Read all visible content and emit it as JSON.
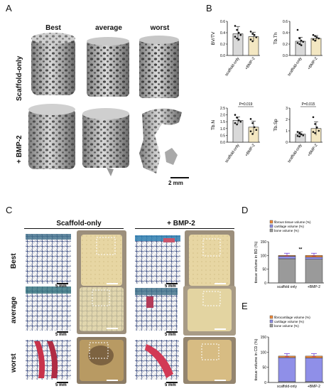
{
  "panel_labels": {
    "a": "A",
    "b": "B",
    "c": "C",
    "d": "D",
    "e": "E"
  },
  "panelA": {
    "col_headers": [
      "Best",
      "average",
      "worst"
    ],
    "row_labels": [
      "Scaffold-only",
      "+ BMP-2"
    ],
    "scale": "2 mm"
  },
  "panelC": {
    "group_headers": [
      "Scaffold-only",
      "+ BMP-2"
    ],
    "row_labels": [
      "Best",
      "average",
      "worst"
    ],
    "scale": "5 mm"
  },
  "colors": {
    "scaffold_bar": "#d9d9d9",
    "bmp_bar": "#f3e7c2",
    "bone": "#9a9a9a",
    "cartilage": "#8f8fe8",
    "fibrous": "#f28b3a",
    "error": "#6b3fd6",
    "error_red": "#e23b2b"
  },
  "chart_data": [
    {
      "type": "bar",
      "id": "bvtv",
      "ylabel": "BV/TV",
      "categories": [
        "scaffold-only",
        "+BMP-2"
      ],
      "values": [
        0.38,
        0.33
      ],
      "err": [
        0.13,
        0.08
      ],
      "ylim": [
        0,
        0.6
      ],
      "yticks": [
        "0.0",
        "0.2",
        "0.4",
        "0.6"
      ],
      "points": [
        [
          0.52,
          0.45,
          0.4,
          0.36,
          0.33,
          0.3,
          0.28
        ],
        [
          0.42,
          0.38,
          0.36,
          0.32,
          0.28,
          0.25
        ]
      ]
    },
    {
      "type": "bar",
      "id": "tbth",
      "ylabel": "Tb.Th",
      "categories": [
        "scaffold-only",
        "+BMP-2"
      ],
      "values": [
        0.25,
        0.3
      ],
      "err": [
        0.07,
        0.05
      ],
      "ylim": [
        0,
        0.6
      ],
      "yticks": [
        "0.0",
        "0.2",
        "0.4",
        "0.6"
      ],
      "points": [
        [
          0.45,
          0.3,
          0.26,
          0.24,
          0.22,
          0.2,
          0.18
        ],
        [
          0.36,
          0.34,
          0.32,
          0.3,
          0.28,
          0.26
        ]
      ]
    },
    {
      "type": "bar",
      "id": "tbn",
      "ylabel": "Tb.N",
      "categories": [
        "scaffold-only",
        "+BMP-2"
      ],
      "values": [
        1.6,
        1.1
      ],
      "err": [
        0.25,
        0.45
      ],
      "ylim": [
        0,
        2.5
      ],
      "yticks": [
        "0.0",
        "0.5",
        "1.0",
        "1.5",
        "2.0",
        "2.5"
      ],
      "pvalue": "P=0.019",
      "points": [
        [
          2.0,
          1.8,
          1.6,
          1.5,
          1.4,
          1.3,
          1.6
        ],
        [
          1.7,
          1.4,
          1.1,
          0.9,
          0.8,
          0.6
        ]
      ]
    },
    {
      "type": "bar",
      "id": "tbsp",
      "ylabel": "Tb.Sp",
      "categories": [
        "scaffold-only",
        "+BMP-2"
      ],
      "values": [
        0.7,
        1.2
      ],
      "err": [
        0.2,
        0.6
      ],
      "ylim": [
        0,
        3
      ],
      "yticks": [
        "0",
        "1",
        "2",
        "3"
      ],
      "pvalue": "P=0.015",
      "points": [
        [
          0.9,
          0.8,
          0.7,
          0.6,
          0.55,
          0.5,
          0.7
        ],
        [
          2.2,
          1.6,
          1.3,
          1.0,
          0.9,
          0.8
        ]
      ]
    },
    {
      "type": "bar",
      "id": "D",
      "ylabel": "tissue volume in BD (%)",
      "categories": [
        "scaffold only",
        "+BMP-2"
      ],
      "ylim": [
        0,
        150
      ],
      "yticks": [
        "0",
        "50",
        "100",
        "150"
      ],
      "significance": "**",
      "series": [
        {
          "name": "bone volume (%)",
          "values": [
            88,
            86
          ]
        },
        {
          "name": "cartilage volume (%)",
          "values": [
            9,
            8
          ]
        },
        {
          "name": "fibrous tissue volume (%)",
          "values": [
            3,
            6
          ]
        }
      ],
      "legend_order": [
        "fibrous tissue volume (%)",
        "cartilage volume (%)",
        "bone volume (%)"
      ]
    },
    {
      "type": "bar",
      "id": "E",
      "ylabel": "tissue volume in CD (%)",
      "categories": [
        "scaffold-only",
        "+BMP-2"
      ],
      "ylim": [
        0,
        150
      ],
      "yticks": [
        "0",
        "50",
        "100",
        "150"
      ],
      "series": [
        {
          "name": "bone volume (%)",
          "values": [
            3,
            3
          ]
        },
        {
          "name": "cartilage volume (%)",
          "values": [
            79,
            78
          ]
        },
        {
          "name": "fibrocartilage volume (%)",
          "values": [
            5,
            6
          ]
        }
      ],
      "legend_order": [
        "fibrocartilage volume (%)",
        "cartilage volume (%)",
        "bone volume (%)"
      ]
    }
  ]
}
